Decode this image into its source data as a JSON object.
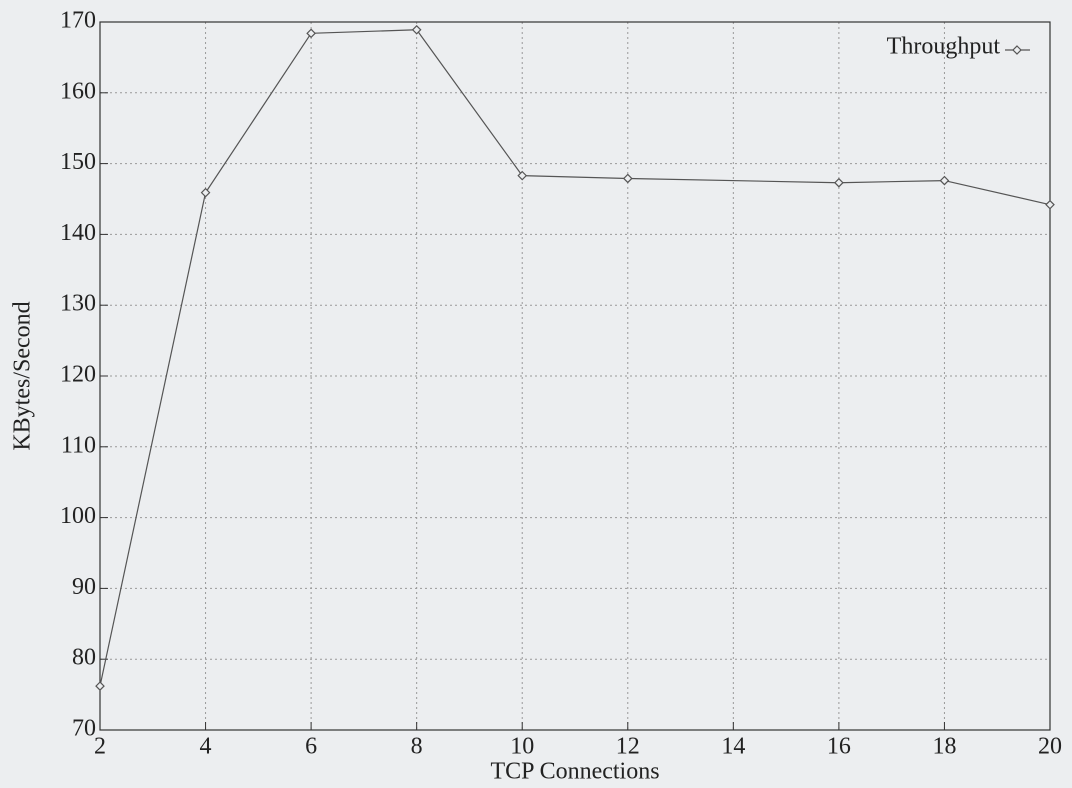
{
  "chart_data": {
    "type": "line",
    "x_label": "TCP Connections",
    "y_label": "KBytes/Second",
    "x": [
      2,
      4,
      6,
      8,
      10,
      12,
      16,
      18,
      20
    ],
    "series": [
      {
        "name": "Throughput",
        "color": "#555555",
        "values": [
          76.2,
          145.9,
          168.4,
          168.9,
          148.3,
          147.9,
          147.3,
          147.6,
          144.2
        ]
      }
    ],
    "xlim": [
      2,
      20
    ],
    "xticks": [
      2,
      4,
      6,
      8,
      10,
      12,
      14,
      16,
      18,
      20
    ],
    "ylim": [
      70,
      170
    ],
    "yticks": [
      70,
      80,
      90,
      100,
      110,
      120,
      130,
      140,
      150,
      160,
      170
    ],
    "grid": true,
    "legend": "top-right"
  }
}
